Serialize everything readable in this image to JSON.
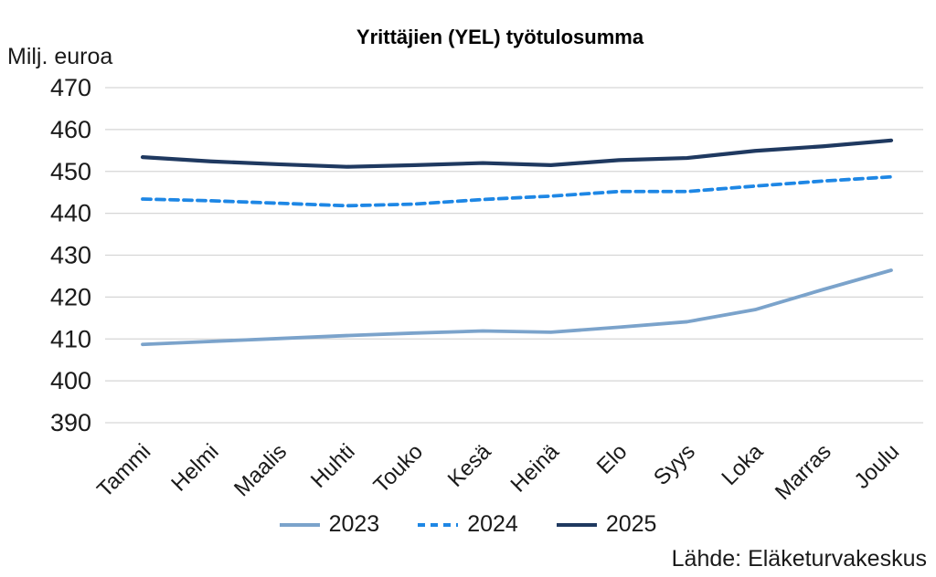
{
  "title": "Yrittäjien (YEL) työtulosumma",
  "y_axis_unit": "Milj. euroa",
  "source": "Lähde: Eläketurvakeskus",
  "colors": {
    "series_2023": "#7BA3CB",
    "series_2024": "#1E87E5",
    "series_2025": "#1F3960",
    "gridline": "#D6D6D6",
    "text": "#1a1a1a"
  },
  "chart_data": {
    "type": "line",
    "title": "Yrittäjien (YEL) työtulosumma",
    "ylabel": "Milj. euroa",
    "xlabel": "",
    "categories": [
      "Tammi",
      "Helmi",
      "Maalis",
      "Huhti",
      "Touko",
      "Kesä",
      "Heinä",
      "Elo",
      "Syys",
      "Loka",
      "Marras",
      "Joulu"
    ],
    "series": [
      {
        "name": "2023",
        "color": "#7BA3CB",
        "dashed": false,
        "values": [
          408.7,
          409.4,
          410.1,
          410.8,
          411.4,
          411.9,
          411.6,
          412.8,
          414.1,
          417.0,
          421.8,
          426.4
        ]
      },
      {
        "name": "2024",
        "color": "#1E87E5",
        "dashed": true,
        "values": [
          443.4,
          443.0,
          442.4,
          441.8,
          442.2,
          443.3,
          444.1,
          445.2,
          445.2,
          446.5,
          447.7,
          448.7
        ]
      },
      {
        "name": "2025",
        "color": "#1F3960",
        "dashed": false,
        "values": [
          453.4,
          452.4,
          451.7,
          451.1,
          451.5,
          452.0,
          451.5,
          452.7,
          453.2,
          454.9,
          456.0,
          457.4
        ]
      }
    ],
    "ylim": [
      390,
      470
    ],
    "ytick_step": 10,
    "yticks": [
      390,
      400,
      410,
      420,
      430,
      440,
      450,
      460,
      470
    ],
    "grid": true,
    "legend_position": "bottom"
  },
  "legend": {
    "items": [
      {
        "label": "2023"
      },
      {
        "label": "2024"
      },
      {
        "label": "2025"
      }
    ]
  }
}
